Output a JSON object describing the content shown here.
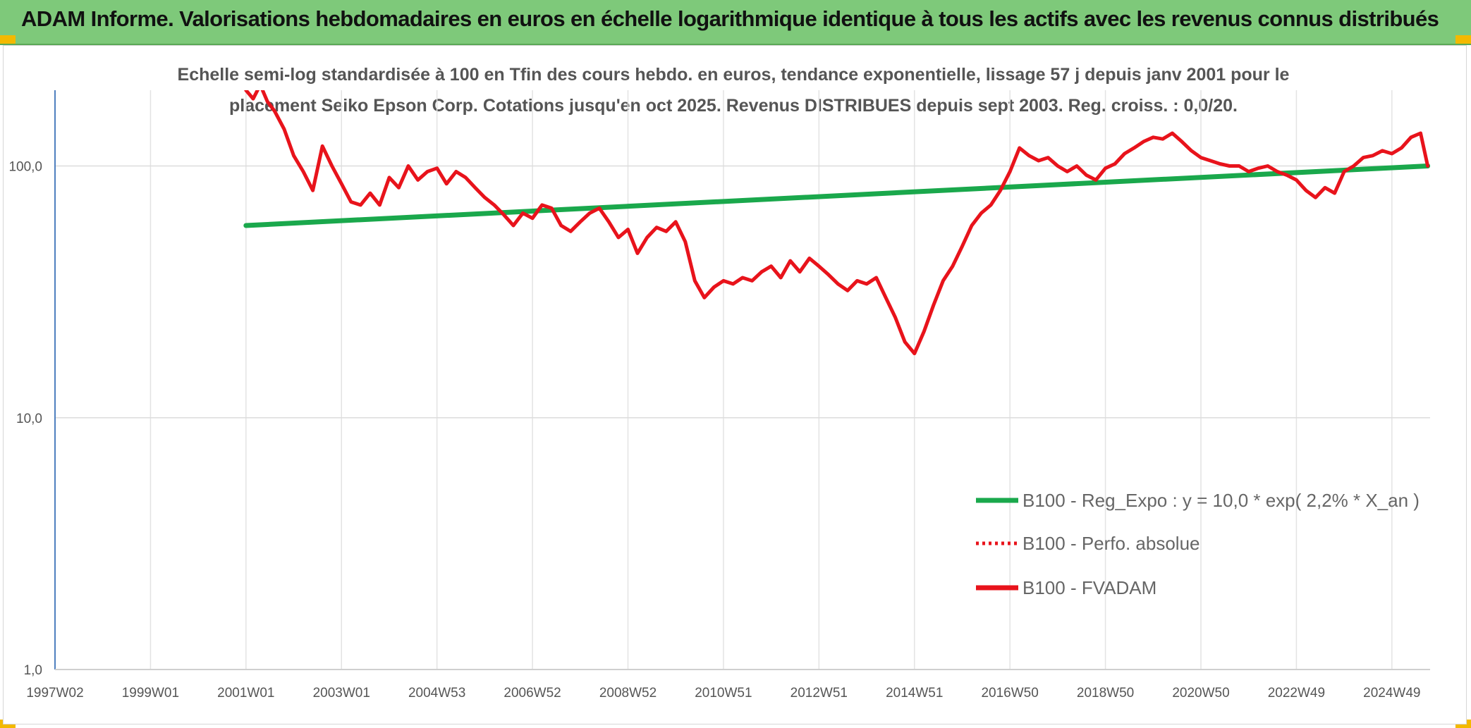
{
  "banner": {
    "title": "ADAM Informe. Valorisations hebdomadaires en euros en échelle logarithmique identique à tous les actifs avec les revenus connus distribués"
  },
  "colors": {
    "banner": "#7ec97a",
    "fvadam": "#e8131b",
    "regression": "#1aa84c",
    "corner": "#f3b900"
  },
  "chart_data": {
    "type": "line",
    "title_line1": "Echelle semi-log standardisée à 100 en Tfin des cours hebdo. en euros, tendance exponentielle, lissage 57 j depuis janv 2001 pour le",
    "title_line2": "placement Seiko Epson Corp. Cotations jusqu'en oct 2025. Revenus DISTRIBUES depuis sept 2003. Reg. croiss. : 0,0/20.",
    "y_scale": "log",
    "ylim": [
      1,
      200
    ],
    "xlim": [
      1997.0,
      2025.8
    ],
    "y_ticks": [
      {
        "value": 1,
        "label": "1,0"
      },
      {
        "value": 10,
        "label": "10,0"
      },
      {
        "value": 100,
        "label": "100,0"
      }
    ],
    "x_ticks": [
      {
        "value": 1997.0,
        "label": "1997W02"
      },
      {
        "value": 1999.0,
        "label": "1999W01"
      },
      {
        "value": 2001.0,
        "label": "2001W01"
      },
      {
        "value": 2003.0,
        "label": "2003W01"
      },
      {
        "value": 2005.0,
        "label": "2004W53"
      },
      {
        "value": 2007.0,
        "label": "2006W52"
      },
      {
        "value": 2009.0,
        "label": "2008W52"
      },
      {
        "value": 2011.0,
        "label": "2010W51"
      },
      {
        "value": 2013.0,
        "label": "2012W51"
      },
      {
        "value": 2015.0,
        "label": "2014W51"
      },
      {
        "value": 2017.0,
        "label": "2016W50"
      },
      {
        "value": 2019.0,
        "label": "2018W50"
      },
      {
        "value": 2021.0,
        "label": "2020W50"
      },
      {
        "value": 2023.0,
        "label": "2022W49"
      },
      {
        "value": 2025.0,
        "label": "2024W49"
      }
    ],
    "grid": "vertical and horizontal",
    "legend_position": "bottom-right",
    "series": [
      {
        "name": "B100 - Reg_Expo : y = 10,0 * exp( 2,2% *  X_an )",
        "style": "solid",
        "x": [
          2001.0,
          2025.75
        ],
        "y": [
          58,
          100
        ]
      },
      {
        "name": "B100 - Perfo. absolue",
        "style": "dotted",
        "x": [],
        "y": []
      },
      {
        "name": "B100 - FVADAM",
        "style": "solid",
        "x": [
          2001.0,
          2001.15,
          2001.3,
          2001.45,
          2001.6,
          2001.8,
          2002.0,
          2002.2,
          2002.4,
          2002.6,
          2002.8,
          2003.0,
          2003.2,
          2003.4,
          2003.6,
          2003.8,
          2004.0,
          2004.2,
          2004.4,
          2004.6,
          2004.8,
          2005.0,
          2005.2,
          2005.4,
          2005.6,
          2005.8,
          2006.0,
          2006.2,
          2006.4,
          2006.6,
          2006.8,
          2007.0,
          2007.2,
          2007.4,
          2007.6,
          2007.8,
          2008.0,
          2008.2,
          2008.4,
          2008.6,
          2008.8,
          2009.0,
          2009.2,
          2009.4,
          2009.6,
          2009.8,
          2010.0,
          2010.2,
          2010.4,
          2010.6,
          2010.8,
          2011.0,
          2011.2,
          2011.4,
          2011.6,
          2011.8,
          2012.0,
          2012.2,
          2012.4,
          2012.6,
          2012.8,
          2013.0,
          2013.2,
          2013.4,
          2013.6,
          2013.8,
          2014.0,
          2014.2,
          2014.4,
          2014.6,
          2014.8,
          2015.0,
          2015.2,
          2015.4,
          2015.6,
          2015.8,
          2016.0,
          2016.2,
          2016.4,
          2016.6,
          2016.8,
          2017.0,
          2017.2,
          2017.4,
          2017.6,
          2017.8,
          2018.0,
          2018.2,
          2018.4,
          2018.6,
          2018.8,
          2019.0,
          2019.2,
          2019.4,
          2019.6,
          2019.8,
          2020.0,
          2020.2,
          2020.4,
          2020.6,
          2020.8,
          2021.0,
          2021.2,
          2021.4,
          2021.6,
          2021.8,
          2022.0,
          2022.2,
          2022.4,
          2022.6,
          2022.8,
          2023.0,
          2023.2,
          2023.4,
          2023.6,
          2023.8,
          2024.0,
          2024.2,
          2024.4,
          2024.6,
          2024.8,
          2025.0,
          2025.2,
          2025.4,
          2025.6,
          2025.75
        ],
        "y": [
          200,
          185,
          210,
          180,
          165,
          140,
          110,
          95,
          80,
          120,
          100,
          85,
          72,
          70,
          78,
          70,
          90,
          82,
          100,
          88,
          95,
          98,
          85,
          95,
          90,
          82,
          75,
          70,
          64,
          58,
          65,
          62,
          70,
          68,
          58,
          55,
          60,
          65,
          68,
          60,
          52,
          56,
          45,
          52,
          57,
          55,
          60,
          50,
          35,
          30,
          33,
          35,
          34,
          36,
          35,
          38,
          40,
          36,
          42,
          38,
          43,
          40,
          37,
          34,
          32,
          35,
          34,
          36,
          30,
          25,
          20,
          18,
          22,
          28,
          35,
          40,
          48,
          58,
          65,
          70,
          80,
          95,
          118,
          110,
          105,
          108,
          100,
          95,
          100,
          92,
          88,
          98,
          102,
          112,
          118,
          125,
          130,
          128,
          135,
          125,
          115,
          108,
          105,
          102,
          100,
          100,
          95,
          98,
          100,
          95,
          92,
          88,
          80,
          75,
          82,
          78,
          95,
          100,
          108,
          110,
          115,
          112,
          118,
          130,
          135,
          100
        ]
      }
    ]
  }
}
